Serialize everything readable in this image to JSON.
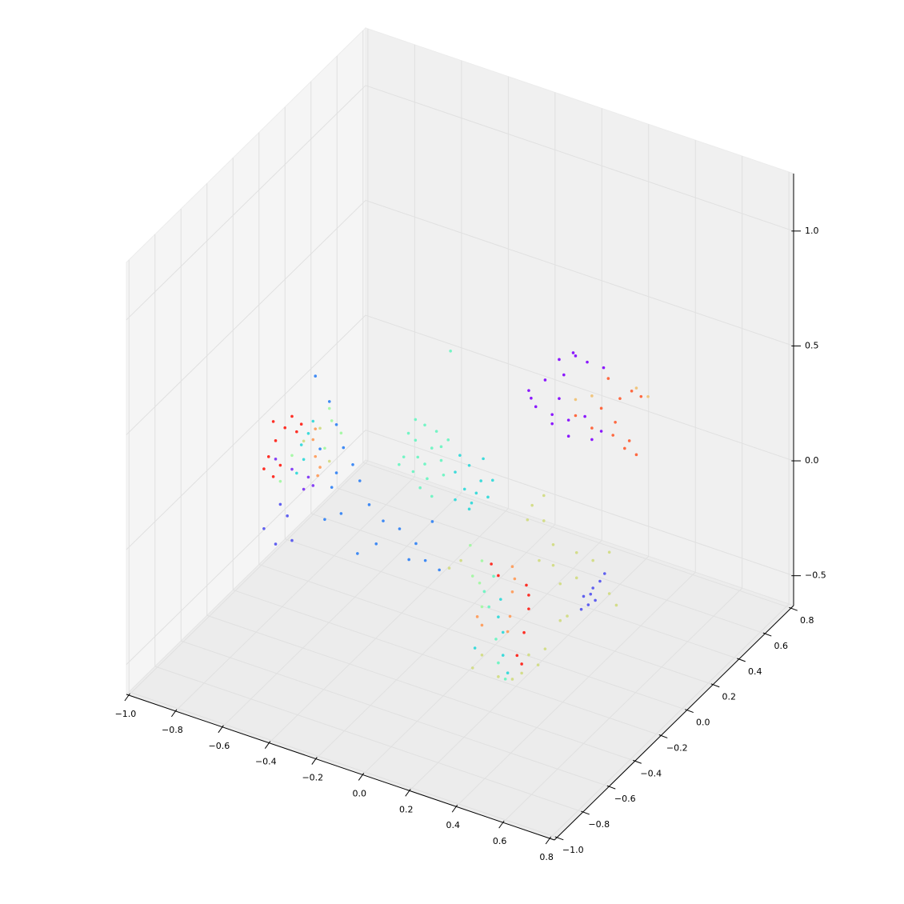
{
  "chart_data": {
    "type": "scatter3d",
    "xlim": [
      -1.01,
      0.82
    ],
    "ylim": [
      -1.02,
      0.82
    ],
    "zlim": [
      -0.63,
      1.25
    ],
    "xticks": [
      {
        "value": -1.0,
        "label": "−1.0"
      },
      {
        "value": -0.8,
        "label": "−0.8"
      },
      {
        "value": -0.6,
        "label": "−0.6"
      },
      {
        "value": -0.4,
        "label": "−0.4"
      },
      {
        "value": -0.2,
        "label": "−0.2"
      },
      {
        "value": 0,
        "label": "0.0"
      },
      0.2,
      0.4,
      0.6,
      0.8
    ],
    "yticks": [
      {
        "value": -1.0,
        "label": "−1.0"
      },
      {
        "value": -0.8,
        "label": "−0.8"
      },
      {
        "value": -0.6,
        "label": "−0.6"
      },
      {
        "value": -0.4,
        "label": "−0.4"
      },
      {
        "value": -0.2,
        "label": "−0.2"
      },
      {
        "value": 0,
        "label": "0.0"
      },
      0.2,
      0.4,
      0.6,
      0.8
    ],
    "zticks": [
      {
        "value": -0.5,
        "label": "−0.5"
      },
      {
        "value": 0,
        "label": "0.0"
      },
      0.5,
      {
        "value": 1.0,
        "label": "1.0"
      }
    ],
    "grid": true,
    "series": [
      {
        "color": "#8000ff",
        "x": [
          -0.04,
          -0.01,
          0.09,
          0.16,
          0.06,
          0.13,
          0.23,
          0.03,
          0.11,
          0.2,
          0.09,
          0.27,
          0.15,
          0.21,
          -0.03,
          0.06,
          0.28,
          0.13
        ],
        "y": [
          0.33,
          0.33,
          0.33,
          0.33,
          0.33,
          0.33,
          0.33,
          0.33,
          0.33,
          0.33,
          0.33,
          0.33,
          0.33,
          0.33,
          0.33,
          0.33,
          0.33,
          0.33
        ],
        "z": [
          0.28,
          0.22,
          0.46,
          0.5,
          0.17,
          0.14,
          0.16,
          0.35,
          0.4,
          0.25,
          0.29,
          0.21,
          0.51,
          0.49,
          0.25,
          0.21,
          0.49,
          0.21
        ]
      },
      {
        "color": "#ff5a2d",
        "x": [
          0.3,
          0.4,
          0.35,
          0.33,
          0.39,
          0.42,
          0.27,
          0.16,
          0.23,
          0.32,
          0.37,
          0.44
        ],
        "y": [
          0.33,
          0.33,
          0.33,
          0.33,
          0.33,
          0.33,
          0.33,
          0.33,
          0.33,
          0.33,
          0.33,
          0.33
        ],
        "z": [
          0.45,
          0.43,
          0.38,
          0.27,
          0.21,
          0.16,
          0.31,
          0.24,
          0.21,
          0.21,
          0.17,
          0.42
        ]
      },
      {
        "color": "#f0c070",
        "x": [
          0.47,
          0.42,
          0.23,
          0.16
        ],
        "y": [
          0.33,
          0.33,
          0.33,
          0.33
        ],
        "z": [
          0.43,
          0.45,
          0.35,
          0.31
        ]
      },
      {
        "color": "#66f5c0",
        "x": [
          -0.43,
          -0.38,
          -0.34,
          -0.31,
          -0.39,
          -0.33,
          -0.27,
          -0.41,
          -0.36,
          -0.29,
          -0.26,
          -0.45,
          -0.34,
          -0.31,
          -0.38,
          -0.24,
          -0.37,
          -0.27,
          -0.23,
          0.16,
          0.14,
          0.17,
          0.18,
          0.12,
          0.21
        ],
        "y": [
          0.07,
          0.07,
          0.07,
          0.07,
          0.07,
          0.07,
          0.07,
          0.07,
          0.07,
          0.07,
          0.07,
          0.07,
          0.07,
          0.07,
          0.07,
          0.07,
          0.07,
          0.07,
          0.07,
          -0.3,
          -0.3,
          -0.3,
          -0.3,
          -0.3,
          -0.3
        ],
        "z": [
          0.0,
          0.09,
          0.17,
          0.08,
          -0.05,
          -0.06,
          0.04,
          0.11,
          -0.11,
          0.16,
          -0.02,
          -0.04,
          0.0,
          -0.13,
          0.18,
          0.14,
          0.02,
          0.1,
          0.53,
          -0.11,
          -0.25,
          -0.38,
          -0.48,
          -0.19,
          -0.54
        ]
      },
      {
        "color": "#2ad8d8",
        "x": [
          -0.21,
          -0.15,
          -0.1,
          -0.07,
          -0.17,
          -0.14,
          -0.09,
          -0.19,
          -0.12,
          -0.05,
          -0.15,
          -0.21,
          -0.69,
          -0.68,
          -0.66,
          -0.71,
          -0.64,
          0.19,
          0.2,
          0.2,
          0.22,
          0.18,
          0.08
        ],
        "y": [
          0.07,
          0.07,
          0.07,
          0.07,
          0.07,
          0.07,
          0.07,
          0.07,
          0.07,
          0.07,
          0.07,
          0.07,
          -0.25,
          -0.25,
          -0.25,
          -0.25,
          -0.25,
          -0.3,
          -0.3,
          -0.3,
          -0.3,
          -0.3,
          -0.3
        ],
        "z": [
          0.01,
          0.06,
          0.01,
          -0.05,
          -0.05,
          -0.1,
          0.11,
          0.09,
          -0.05,
          0.03,
          -0.13,
          -0.11,
          0.14,
          0.08,
          0.2,
          0.01,
          0.26,
          -0.2,
          -0.34,
          -0.44,
          -0.51,
          -0.28,
          -0.45
        ]
      },
      {
        "color": "#ff1a10",
        "x": [
          -0.81,
          -0.8,
          -0.83,
          -0.78,
          -0.73,
          -0.71,
          -0.85,
          -0.76,
          -0.69,
          -0.81,
          0.3,
          0.31,
          0.29,
          0.26,
          0.28,
          0.15,
          0.18,
          0.31
        ],
        "y": [
          -0.25,
          -0.25,
          -0.25,
          -0.25,
          -0.25,
          -0.25,
          -0.25,
          -0.25,
          -0.25,
          -0.25,
          -0.3,
          -0.3,
          -0.3,
          -0.3,
          -0.3,
          -0.3,
          -0.3,
          -0.3
        ],
        "z": [
          0.2,
          0.12,
          0.04,
          0.02,
          0.25,
          0.19,
          -0.02,
          0.19,
          0.23,
          -0.04,
          -0.1,
          -0.2,
          -0.31,
          -0.42,
          -0.45,
          -0.06,
          -0.1,
          -0.14
        ]
      },
      {
        "color": "#ff9955",
        "x": [
          -0.64,
          -0.63,
          -0.61,
          -0.63,
          -0.62,
          0.24,
          0.24,
          0.23,
          0.25,
          0.22,
          0.09,
          0.11
        ],
        "y": [
          -0.25,
          -0.25,
          -0.25,
          -0.25,
          -0.25,
          -0.3,
          -0.3,
          -0.3,
          -0.3,
          -0.3,
          -0.3,
          -0.3
        ],
        "z": [
          0.18,
          0.11,
          0.07,
          0.23,
          0.03,
          -0.04,
          -0.15,
          -0.26,
          -0.09,
          -0.33,
          -0.31,
          -0.34
        ]
      },
      {
        "color": "#a0f8a0",
        "x": [
          -0.73,
          -0.57,
          -0.56,
          -0.78,
          -0.52,
          -0.59,
          0.11,
          0.1,
          0.11,
          0.07,
          0.06
        ],
        "y": [
          -0.25,
          -0.25,
          -0.25,
          -0.25,
          -0.25,
          -0.25,
          -0.3,
          -0.3,
          -0.3,
          -0.3,
          -0.3
        ],
        "z": [
          0.08,
          0.34,
          0.29,
          -0.05,
          0.25,
          0.16,
          -0.06,
          -0.16,
          -0.26,
          -0.14,
          -0.01
        ]
      },
      {
        "color": "#d0dc80",
        "x": [
          -0.61,
          -0.68,
          -0.57,
          0.03,
          0.08,
          0.12,
          0.06,
          0.22,
          0.29,
          0.36,
          0.39,
          0.18,
          0.15,
          0.12,
          0.01,
          0.36,
          0.22,
          0.08,
          0.15,
          0.11,
          0.18,
          0.28,
          0.35,
          0.38,
          0.24,
          0.31,
          -0.03,
          0.02,
          0.07
        ],
        "y": [
          -0.25,
          -0.25,
          -0.25,
          0.23,
          0.23,
          0.23,
          0.23,
          0.23,
          0.23,
          0.23,
          0.23,
          0.23,
          0.23,
          0.23,
          0.23,
          0.23,
          0.23,
          0.23,
          0.23,
          -0.3,
          -0.3,
          -0.3,
          -0.3,
          -0.3,
          -0.3,
          -0.3,
          -0.3,
          -0.3,
          -0.3
        ],
        "z": [
          0.24,
          0.16,
          0.11,
          -0.14,
          -0.19,
          -0.28,
          -0.37,
          -0.28,
          -0.29,
          -0.41,
          -0.45,
          -0.57,
          -0.6,
          -0.37,
          -0.21,
          -0.23,
          -0.39,
          -0.08,
          -0.44,
          -0.47,
          -0.54,
          -0.49,
          -0.43,
          -0.35,
          -0.53,
          -0.4,
          -0.14,
          -0.09,
          -0.54
        ]
      },
      {
        "color": "#7b2ff5",
        "x": [
          -0.66,
          -0.68,
          -0.64,
          -0.73,
          -0.8
        ],
        "y": [
          -0.25,
          -0.25,
          -0.25,
          -0.25,
          -0.25
        ],
        "z": [
          0.01,
          -0.05,
          -0.02,
          0.02,
          0.04
        ]
      },
      {
        "color": "#2c80f5",
        "x": [
          -0.57,
          -0.54,
          -0.51,
          -0.47,
          -0.56,
          -0.52,
          -0.59,
          -0.63,
          -0.44,
          -0.4,
          -0.34,
          -0.27,
          -0.37,
          -0.2,
          -0.16,
          -0.13,
          -0.23,
          -0.45,
          -0.61,
          -0.54,
          -0.1
        ],
        "y": [
          -0.25,
          -0.25,
          -0.25,
          -0.25,
          -0.25,
          -0.25,
          -0.25,
          -0.25,
          -0.25,
          -0.25,
          -0.25,
          -0.25,
          -0.25,
          -0.25,
          -0.25,
          -0.25,
          -0.25,
          -0.25,
          -0.25,
          -0.25,
          -0.25
        ],
        "z": [
          0.37,
          0.28,
          0.19,
          0.13,
          0.0,
          -0.1,
          -0.15,
          0.46,
          0.07,
          -0.02,
          -0.07,
          -0.08,
          -0.18,
          -0.12,
          -0.18,
          0.0,
          -0.2,
          -0.25,
          0.15,
          0.07,
          -0.2
        ]
      },
      {
        "color": "#5050f0",
        "x": [
          -0.85,
          -0.8,
          -0.75,
          -0.78,
          -0.73,
          0.25,
          0.29,
          0.32,
          0.27,
          0.3,
          0.24,
          0.34,
          0.28
        ],
        "y": [
          -0.25,
          -0.25,
          -0.25,
          -0.25,
          -0.25,
          0.23,
          0.23,
          0.23,
          0.23,
          0.23,
          0.23,
          0.23,
          0.23
        ],
        "z": [
          -0.28,
          -0.33,
          -0.19,
          -0.15,
          -0.29,
          -0.46,
          -0.41,
          -0.37,
          -0.49,
          -0.46,
          -0.52,
          -0.33,
          -0.44
        ]
      }
    ]
  }
}
